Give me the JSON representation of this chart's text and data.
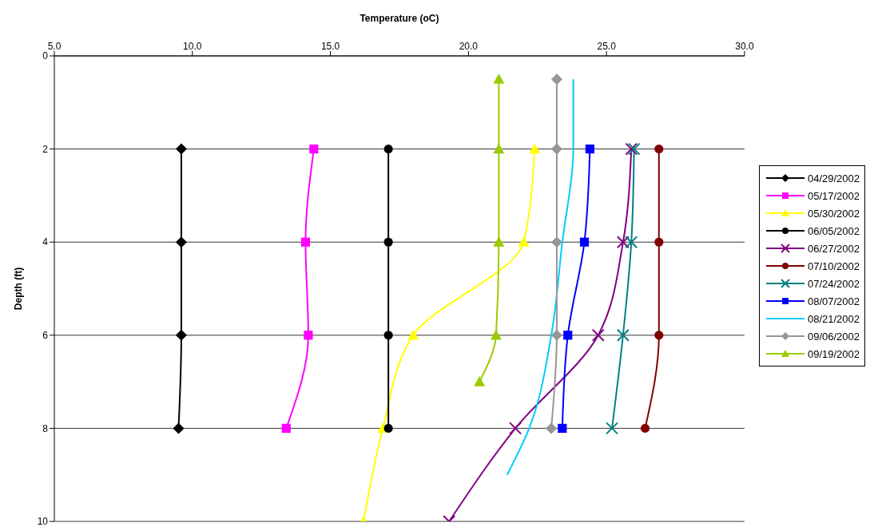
{
  "chart_data": {
    "type": "line",
    "xlabel": "Temperature (oC)",
    "ylabel": "Depth (ft)",
    "xlim": [
      5,
      30
    ],
    "xticks": [
      {
        "value": 5,
        "label": "5.0"
      },
      {
        "value": 10,
        "label": "10.0"
      },
      {
        "value": 15,
        "label": "15.0"
      },
      {
        "value": 20,
        "label": "20.0"
      },
      {
        "value": 25,
        "label": "25.0"
      },
      {
        "value": 30,
        "label": "30.0"
      }
    ],
    "ylim": [
      10,
      0
    ],
    "yticks": [
      0,
      2,
      4,
      6,
      8,
      10
    ],
    "grid": "y",
    "legend": "right",
    "line_style": "solid",
    "series": [
      {
        "name": "04/29/2002",
        "color": "#000000",
        "marker": "diamond",
        "x": [
          9.6,
          9.6,
          9.6,
          9.5
        ],
        "values": [
          2,
          4,
          6,
          8
        ]
      },
      {
        "name": "05/17/2002",
        "color": "#ff00ff",
        "marker": "square",
        "x": [
          14.4,
          14.1,
          14.2,
          13.4
        ],
        "values": [
          2,
          4,
          6,
          8
        ]
      },
      {
        "name": "05/30/2002",
        "color": "#ffff00",
        "marker": "triangle",
        "x": [
          22.4,
          22.0,
          18.0,
          16.9,
          16.2
        ],
        "values": [
          2,
          4,
          6,
          8,
          10
        ]
      },
      {
        "name": "06/05/2002",
        "color": "#000000",
        "marker": "circle",
        "x": [
          17.1,
          17.1,
          17.1,
          17.1
        ],
        "values": [
          2,
          4,
          6,
          8
        ]
      },
      {
        "name": "06/27/2002",
        "color": "#800080",
        "marker": "cross",
        "x": [
          25.9,
          25.6,
          24.7,
          21.7,
          19.3
        ],
        "values": [
          2,
          4,
          6,
          8,
          10
        ]
      },
      {
        "name": "07/10/2002",
        "color": "#800000",
        "marker": "circle",
        "x": [
          26.9,
          26.9,
          26.9,
          26.4
        ],
        "values": [
          2,
          4,
          6,
          8
        ]
      },
      {
        "name": "07/24/2002",
        "color": "#008080",
        "marker": "cross",
        "x": [
          26.0,
          25.9,
          25.6,
          25.2
        ],
        "values": [
          2,
          4,
          6,
          8
        ]
      },
      {
        "name": "08/07/2002",
        "color": "#0000ff",
        "marker": "square",
        "x": [
          24.4,
          24.2,
          23.6,
          23.4
        ],
        "values": [
          2,
          4,
          6,
          8
        ]
      },
      {
        "name": "08/21/2002",
        "color": "#00ccff",
        "marker": "none",
        "x": [
          23.8,
          23.8,
          23.4,
          23.0,
          22.2,
          21.4
        ],
        "values": [
          0.5,
          2,
          4,
          6,
          8,
          9
        ]
      },
      {
        "name": "09/06/2002",
        "color": "#969696",
        "marker": "diamond",
        "x": [
          23.2,
          23.2,
          23.2,
          23.2,
          23.0
        ],
        "values": [
          0.5,
          2,
          4,
          6,
          8
        ]
      },
      {
        "name": "09/19/2002",
        "color": "#99cc00",
        "marker": "triangle",
        "x": [
          21.1,
          21.1,
          21.1,
          21.0,
          20.4
        ],
        "values": [
          0.5,
          2,
          4,
          6,
          7
        ]
      }
    ]
  }
}
